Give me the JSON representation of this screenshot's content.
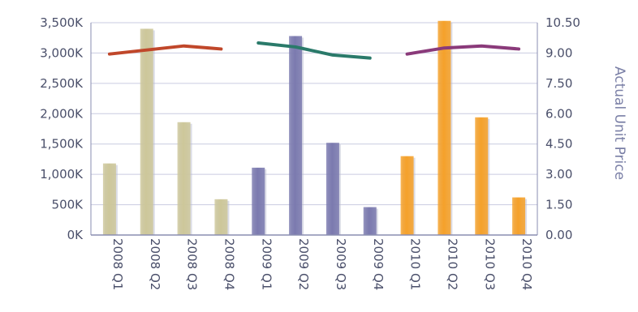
{
  "chart_data": {
    "type": "bar",
    "categories": [
      "2008 Q1",
      "2008 Q2",
      "2008 Q3",
      "2008 Q4",
      "2009 Q1",
      "2009 Q2",
      "2009 Q3",
      "2009 Q4",
      "2010 Q1",
      "2010 Q2",
      "2010 Q3",
      "2010 Q4"
    ],
    "bar_values": [
      1180,
      3400,
      1860,
      590,
      1110,
      3280,
      1520,
      460,
      1300,
      3530,
      1940,
      620
    ],
    "bar_colors": [
      "#cdc79a",
      "#cdc79a",
      "#cdc79a",
      "#cdc79a",
      "#7b7aaf",
      "#7b7aaf",
      "#7b7aaf",
      "#7b7aaf",
      "#f5a12a",
      "#f5a12a",
      "#f5a12a",
      "#f5a12a"
    ],
    "lines": [
      {
        "color": "#c0472a",
        "points": [
          [
            0,
            8.95
          ],
          [
            1,
            9.15
          ],
          [
            2,
            9.35
          ],
          [
            3,
            9.2
          ]
        ]
      },
      {
        "color": "#2a7a6a",
        "points": [
          [
            4,
            9.5
          ],
          [
            5,
            9.3
          ],
          [
            6,
            8.9
          ],
          [
            7,
            8.75
          ]
        ]
      },
      {
        "color": "#8a3a7a",
        "points": [
          [
            8,
            8.95
          ],
          [
            9,
            9.25
          ],
          [
            10,
            9.35
          ],
          [
            11,
            9.2
          ]
        ]
      }
    ],
    "y_left": {
      "ticks": [
        "3,500K",
        "3,000K",
        "2,500K",
        "2,000K",
        "1,500K",
        "1,000K",
        "500K",
        "0K"
      ],
      "min": 0,
      "max": 3500
    },
    "y_right": {
      "ticks": [
        "10.50",
        "9.00",
        "7.50",
        "6.00",
        "4.50",
        "3.00",
        "1.50",
        "0.00"
      ],
      "min": 0,
      "max": 10.5,
      "label": "Actual Unit Price"
    },
    "grid": true
  }
}
